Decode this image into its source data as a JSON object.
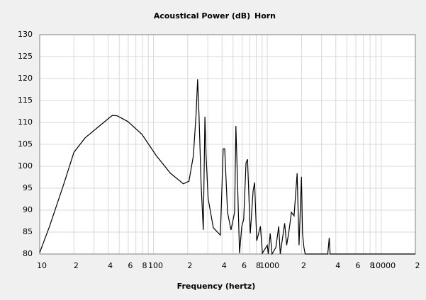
{
  "chart_data": {
    "type": "line",
    "title": "Acoustical Power (dB)",
    "x_label": "Frequency (hertz)",
    "x": [
      10,
      12.2,
      16.3,
      20,
      25.1,
      33.5,
      43.4,
      48,
      59.5,
      79,
      106,
      141,
      183,
      205,
      224,
      237,
      244,
      251,
      262,
      274,
      283,
      290,
      302,
      335,
      387,
      410,
      422,
      447,
      480,
      516,
      530,
      546,
      570,
      597,
      620,
      650,
      670,
      709,
      750,
      773,
      808,
      870,
      905,
      1000,
      1020,
      1060,
      1100,
      1190,
      1260,
      1300,
      1420,
      1480,
      1540,
      1630,
      1720,
      1830,
      1900,
      1995,
      2040,
      2100,
      2150,
      3400,
      3500,
      3560,
      20000
    ],
    "series": [
      {
        "name": "Horn",
        "color": "#000000",
        "values": [
          80.3,
          86.3,
          96,
          103.2,
          106.5,
          109.2,
          111.6,
          111.5,
          110.2,
          107.3,
          102.4,
          98.4,
          96,
          96.6,
          102.4,
          112,
          119.8,
          112,
          96,
          85.5,
          111.3,
          102.4,
          92.7,
          86,
          84.3,
          104,
          104,
          89.5,
          85.5,
          89.5,
          109.2,
          97.6,
          80.2,
          86.3,
          87.9,
          100.8,
          101.6,
          84.7,
          94.4,
          96.3,
          83,
          86.3,
          80.2,
          82,
          80,
          84.7,
          80,
          81.5,
          86.3,
          80,
          87,
          82,
          84.7,
          89.5,
          88.7,
          98.4,
          82,
          97.6,
          84.7,
          81.5,
          80,
          80,
          83.7,
          80,
          80
        ]
      }
    ],
    "xlim": [
      10,
      20000
    ],
    "ylim": [
      80,
      130
    ],
    "log_x": true,
    "grid": true,
    "xticks": [
      {
        "value": 10,
        "label": "10"
      },
      {
        "value": 20,
        "label": "2"
      },
      {
        "value": 40,
        "label": "4"
      },
      {
        "value": 60,
        "label": "6"
      },
      {
        "value": 80,
        "label": "8"
      },
      100,
      {
        "value": 200,
        "label": "2"
      },
      {
        "value": 400,
        "label": "4"
      },
      {
        "value": 600,
        "label": "6"
      },
      {
        "value": 800,
        "label": "8"
      },
      1000,
      {
        "value": 2000,
        "label": "2"
      },
      {
        "value": 4000,
        "label": "4"
      },
      {
        "value": 6000,
        "label": "6"
      },
      {
        "value": 8000,
        "label": "8"
      },
      10000,
      {
        "value": 20000,
        "label": "2"
      }
    ],
    "minor_xticks": [
      30,
      50,
      70,
      90,
      300,
      500,
      700,
      900,
      3000,
      5000,
      7000,
      9000
    ],
    "yticks": [
      80,
      85,
      90,
      95,
      100,
      105,
      110,
      115,
      120,
      125,
      130
    ]
  }
}
